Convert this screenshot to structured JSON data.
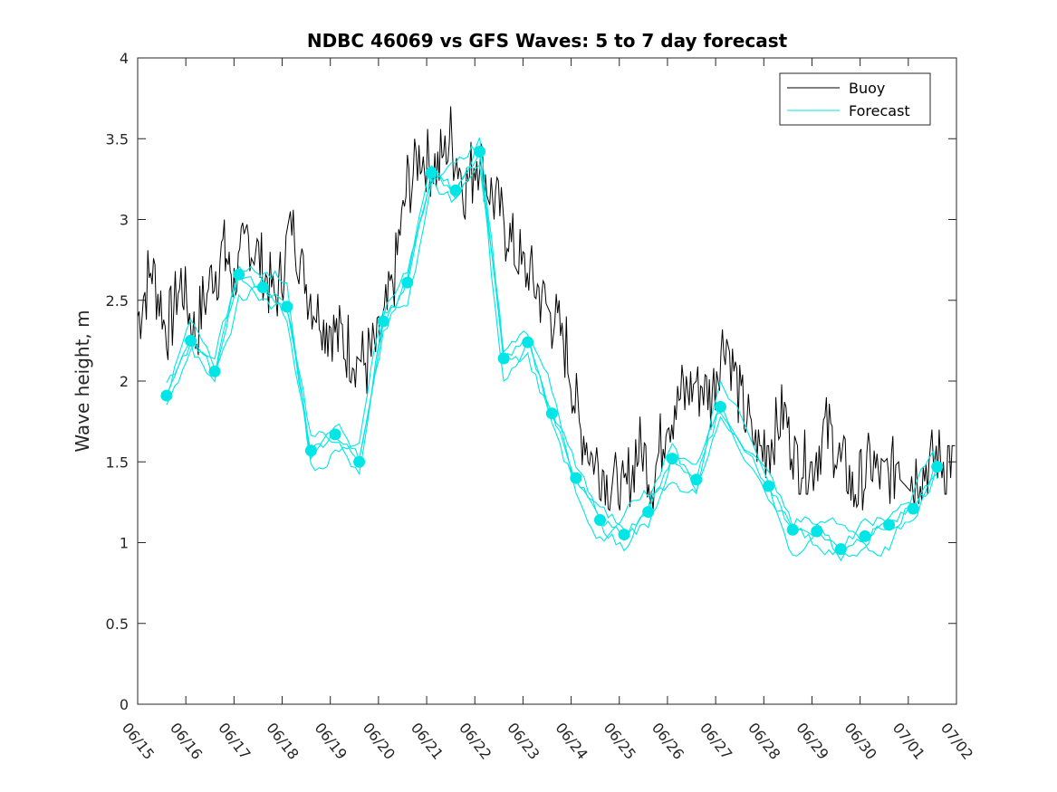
{
  "chart_data": {
    "type": "line",
    "title": "NDBC 46069 vs GFS Waves: 5 to 7 day forecast",
    "xlabel": "",
    "ylabel": "Wave height, m",
    "xlim": [
      "06/15",
      "07/02"
    ],
    "ylim": [
      0,
      4
    ],
    "x_tick_labels": [
      "06/15",
      "06/16",
      "06/17",
      "06/18",
      "06/19",
      "06/20",
      "06/21",
      "06/22",
      "06/23",
      "06/24",
      "06/25",
      "06/26",
      "06/27",
      "06/28",
      "06/29",
      "06/30",
      "07/01",
      "07/02"
    ],
    "y_tick_labels": [
      "0",
      "0.5",
      "1",
      "1.5",
      "2",
      "2.5",
      "3",
      "3.5",
      "4"
    ],
    "grid": false,
    "legend_position": "top-right",
    "colors": {
      "buoy": "#000000",
      "forecast": "#00e5e5",
      "axis": "#262626"
    },
    "series": [
      {
        "name": "Buoy",
        "x_day_of_june": [
          15,
          15.3,
          15.6,
          15.9,
          16.2,
          16.5,
          16.8,
          17.0,
          17.3,
          17.6,
          17.9,
          18.2,
          18.5,
          18.8,
          19.1,
          19.4,
          19.7,
          20.0,
          20.3,
          20.6,
          20.9,
          21.2,
          21.5,
          21.8,
          22.1,
          22.4,
          22.7,
          23.0,
          23.3,
          23.6,
          23.9,
          24.2,
          24.5,
          24.8,
          25.1,
          25.4,
          25.7,
          26.0,
          26.3,
          26.6,
          26.9,
          27.2,
          27.5,
          27.8,
          28.1,
          28.4,
          28.7,
          29.0,
          29.3,
          29.6,
          29.9,
          30.2,
          30.5,
          30.8,
          31.1,
          31.4,
          31.7,
          32.0
        ],
        "y": [
          2.4,
          2.7,
          2.3,
          2.6,
          2.3,
          2.6,
          2.8,
          2.6,
          2.9,
          2.7,
          2.5,
          3.0,
          2.6,
          2.4,
          2.3,
          2.2,
          2.1,
          2.2,
          2.6,
          3.2,
          3.4,
          3.3,
          3.5,
          3.2,
          3.4,
          3.1,
          2.9,
          2.7,
          2.6,
          2.4,
          2.2,
          1.7,
          1.5,
          1.4,
          1.3,
          1.6,
          1.4,
          1.8,
          1.9,
          2.0,
          1.9,
          2.3,
          1.9,
          1.6,
          1.6,
          1.8,
          1.5,
          1.5,
          1.7,
          1.5,
          1.3,
          1.5,
          1.4,
          1.5,
          1.4,
          1.5,
          1.5,
          1.5
        ]
      },
      {
        "name": "Forecast",
        "x_day_of_june": [
          15.6,
          16.1,
          16.6,
          17.1,
          17.6,
          18.1,
          18.6,
          19.1,
          19.6,
          20.1,
          20.6,
          21.1,
          21.6,
          22.1,
          22.6,
          23.1,
          23.6,
          24.1,
          24.6,
          25.1,
          25.6,
          26.1,
          26.6,
          27.1,
          27.6,
          28.1,
          28.6,
          29.1,
          29.6,
          30.1,
          30.6,
          31.1,
          31.6
        ],
        "y": [
          1.91,
          2.25,
          2.06,
          2.66,
          2.58,
          2.46,
          1.57,
          1.67,
          1.5,
          2.37,
          2.61,
          3.29,
          3.18,
          3.42,
          2.14,
          2.24,
          1.8,
          1.4,
          1.14,
          1.05,
          1.19,
          1.52,
          1.39,
          1.84,
          null,
          1.35,
          1.08,
          1.07,
          0.96,
          1.04,
          1.11,
          1.21,
          1.47
        ]
      }
    ],
    "forecast_points": [
      {
        "x": "06/15 +0.6",
        "y": 1.91
      },
      {
        "x": "06/16 +0.1",
        "y": 2.25
      }
    ]
  }
}
